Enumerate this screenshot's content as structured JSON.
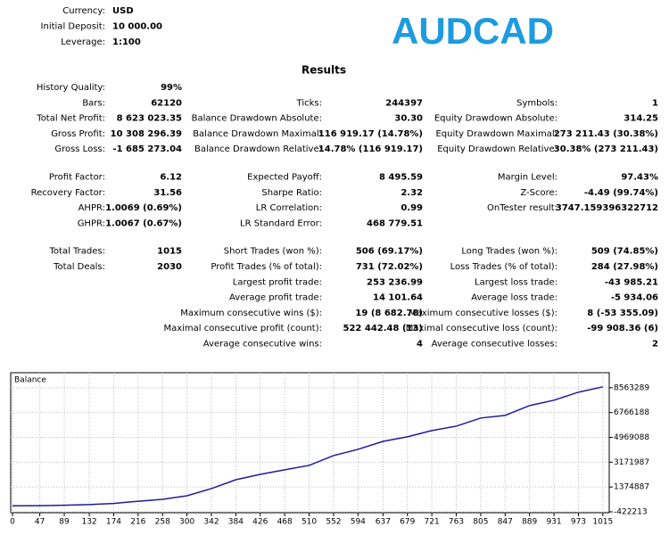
{
  "header": {
    "title": "AUDCAD",
    "fields": [
      {
        "label": "Currency:",
        "value": "USD"
      },
      {
        "label": "Initial Deposit:",
        "value": "10 000.00"
      },
      {
        "label": "Leverage:",
        "value": "1:100"
      }
    ]
  },
  "results": {
    "title": "Results",
    "groups": [
      {
        "rows": [
          [
            {
              "label": "History Quality:",
              "value": "99%"
            },
            null,
            null
          ],
          [
            {
              "label": "Bars:",
              "value": "62120"
            },
            {
              "label": "Ticks:",
              "value": "244397"
            },
            {
              "label": "Symbols:",
              "value": "1"
            }
          ],
          [
            {
              "label": "Total Net Profit:",
              "value": "8 623 023.35"
            },
            {
              "label": "Balance Drawdown Absolute:",
              "value": "30.30"
            },
            {
              "label": "Equity Drawdown Absolute:",
              "value": "314.25"
            }
          ],
          [
            {
              "label": "Gross Profit:",
              "value": "10 308 296.39"
            },
            {
              "label": "Balance Drawdown Maximal:",
              "value": "116 919.17 (14.78%)"
            },
            {
              "label": "Equity Drawdown Maximal:",
              "value": "273 211.43 (30.38%)"
            }
          ],
          [
            {
              "label": "Gross Loss:",
              "value": "-1 685 273.04"
            },
            {
              "label": "Balance Drawdown Relative:",
              "value": "14.78% (116 919.17)"
            },
            {
              "label": "Equity Drawdown Relative:",
              "value": "30.38% (273 211.43)"
            }
          ]
        ]
      },
      {
        "rows": [
          [
            {
              "label": "Profit Factor:",
              "value": "6.12"
            },
            {
              "label": "Expected Payoff:",
              "value": "8 495.59"
            },
            {
              "label": "Margin Level:",
              "value": "97.43%"
            }
          ],
          [
            {
              "label": "Recovery Factor:",
              "value": "31.56"
            },
            {
              "label": "Sharpe Ratio:",
              "value": "2.32"
            },
            {
              "label": "Z-Score:",
              "value": "-4.49 (99.74%)"
            }
          ],
          [
            {
              "label": "AHPR:",
              "value": "1.0069 (0.69%)"
            },
            {
              "label": "LR Correlation:",
              "value": "0.99"
            },
            {
              "label": "OnTester result:",
              "value": "3747.159396322712"
            }
          ],
          [
            {
              "label": "GHPR:",
              "value": "1.0067 (0.67%)"
            },
            {
              "label": "LR Standard Error:",
              "value": "468 779.51"
            },
            null
          ]
        ]
      },
      {
        "rows": [
          [
            {
              "label": "Total Trades:",
              "value": "1015"
            },
            {
              "label": "Short Trades (won %):",
              "value": "506 (69.17%)"
            },
            {
              "label": "Long Trades (won %):",
              "value": "509 (74.85%)"
            }
          ],
          [
            {
              "label": "Total Deals:",
              "value": "2030"
            },
            {
              "label": "Profit Trades (% of total):",
              "value": "731 (72.02%)"
            },
            {
              "label": "Loss Trades (% of total):",
              "value": "284 (27.98%)"
            }
          ],
          [
            null,
            {
              "label": "Largest profit trade:",
              "value": "253 236.99"
            },
            {
              "label": "Largest loss trade:",
              "value": "-43 985.21"
            }
          ],
          [
            null,
            {
              "label": "Average profit trade:",
              "value": "14 101.64"
            },
            {
              "label": "Average loss trade:",
              "value": "-5 934.06"
            }
          ],
          [
            null,
            {
              "label": "Maximum consecutive wins ($):",
              "value": "19 (8 682.78)"
            },
            {
              "label": "Maximum consecutive losses ($):",
              "value": "8 (-53 355.09)"
            }
          ],
          [
            null,
            {
              "label": "Maximal consecutive profit (count):",
              "value": "522 442.48 (13)"
            },
            {
              "label": "Maximal consecutive loss (count):",
              "value": "-99 908.36 (6)"
            }
          ],
          [
            null,
            {
              "label": "Average consecutive wins:",
              "value": "4"
            },
            {
              "label": "Average consecutive losses:",
              "value": "2"
            }
          ]
        ]
      }
    ]
  },
  "chart_data": {
    "type": "line",
    "x": [
      0,
      47,
      89,
      132,
      174,
      200,
      258,
      300,
      342,
      384,
      426,
      468,
      510,
      552,
      594,
      637,
      679,
      721,
      763,
      805,
      847,
      889,
      931,
      973,
      1015
    ],
    "series": [
      {
        "name": "Balance",
        "color": "#1c1c9c",
        "values": [
          10000,
          20000,
          50000,
          100000,
          180000,
          290000,
          480000,
          740000,
          1260000,
          1900000,
          2290000,
          2620000,
          2940000,
          3650000,
          4100000,
          4680000,
          5010000,
          5460000,
          5780000,
          6370000,
          6560000,
          7270000,
          7660000,
          8240000,
          8630000
        ]
      }
    ],
    "xlim": [
      0,
      1026
    ],
    "ylim": [
      -422213,
      9650000
    ],
    "xticks": [
      0,
      47,
      89,
      132,
      174,
      216,
      258,
      300,
      342,
      384,
      426,
      468,
      510,
      552,
      594,
      637,
      679,
      721,
      763,
      805,
      847,
      889,
      931,
      973,
      1015
    ],
    "yticks": [
      -422213,
      1374887,
      3171987,
      4969088,
      6766188,
      8563289
    ],
    "grid": true
  }
}
